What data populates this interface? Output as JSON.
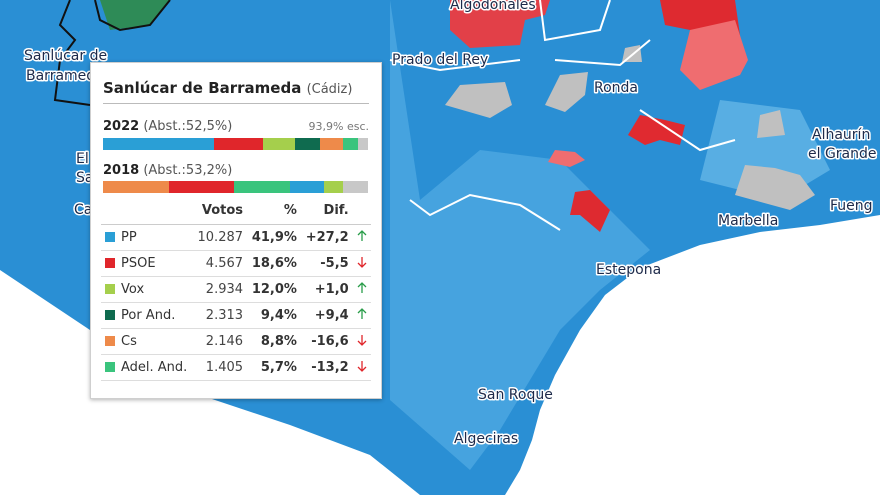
{
  "places": [
    {
      "label": "Algodonales",
      "x": 0,
      "y": 0
    },
    {
      "label": "Prado del Rey"
    },
    {
      "label": "Ronda"
    },
    {
      "label": "Alhaurín"
    },
    {
      "label": "el Grande"
    },
    {
      "label": "Marbella"
    },
    {
      "label": "Fueng"
    },
    {
      "label": "Estepona"
    },
    {
      "label": "San Roque"
    },
    {
      "label": "Algeciras"
    },
    {
      "label": "Sanlúcar de"
    },
    {
      "label": "Barrameda"
    },
    {
      "label": "El"
    },
    {
      "label": "Sa"
    },
    {
      "label": "Ca"
    }
  ],
  "tooltip": {
    "title": "Sanlúcar de Barrameda",
    "province": "(Cádiz)",
    "current": {
      "year": "2022",
      "abstention": "(Abst.:52,5%)",
      "scrutiny": "93,9% esc."
    },
    "previous": {
      "year": "2018",
      "abstention": "(Abst.:53,2%)",
      "bar": [
        {
          "color": "#ee8a4a",
          "value": 25
        },
        {
          "color": "#e0262b",
          "value": 24.5
        },
        {
          "color": "#3ac47d",
          "value": 21
        },
        {
          "color": "#2a9fd6",
          "value": 13
        },
        {
          "color": "#a5cf4c",
          "value": 7
        }
      ]
    },
    "columns": [
      "Votos",
      "%",
      "Dif."
    ],
    "rows": [
      {
        "party": "PP",
        "color": "#2a9fd6",
        "votes": "10.287",
        "pct": {
          "value": 41.9,
          "label": "41,9%"
        },
        "dif": {
          "value": 27.2,
          "label": "+27,2"
        }
      },
      {
        "party": "PSOE",
        "color": "#e0262b",
        "votes": "4.567",
        "pct": {
          "value": 18.6,
          "label": "18,6%"
        },
        "dif": {
          "value": -5.5,
          "label": "-5,5"
        }
      },
      {
        "party": "Vox",
        "color": "#a5cf4c",
        "votes": "2.934",
        "pct": {
          "value": 12.0,
          "label": "12,0%"
        },
        "dif": {
          "value": 1.0,
          "label": "+1,0"
        }
      },
      {
        "party": "Por And.",
        "color": "#0f6b4f",
        "votes": "2.313",
        "pct": {
          "value": 9.4,
          "label": "9,4%"
        },
        "dif": {
          "value": 9.4,
          "label": "+9,4"
        }
      },
      {
        "party": "Cs",
        "color": "#ee8a4a",
        "votes": "2.146",
        "pct": {
          "value": 8.8,
          "label": "8,8%"
        },
        "dif": {
          "value": -16.6,
          "label": "-16,6"
        }
      },
      {
        "party": "Adel. And.",
        "color": "#3ac47d",
        "votes": "1.405",
        "pct": {
          "value": 5.7,
          "label": "5,7%"
        },
        "dif": {
          "value": -13.2,
          "label": "-13,2"
        }
      }
    ]
  }
}
